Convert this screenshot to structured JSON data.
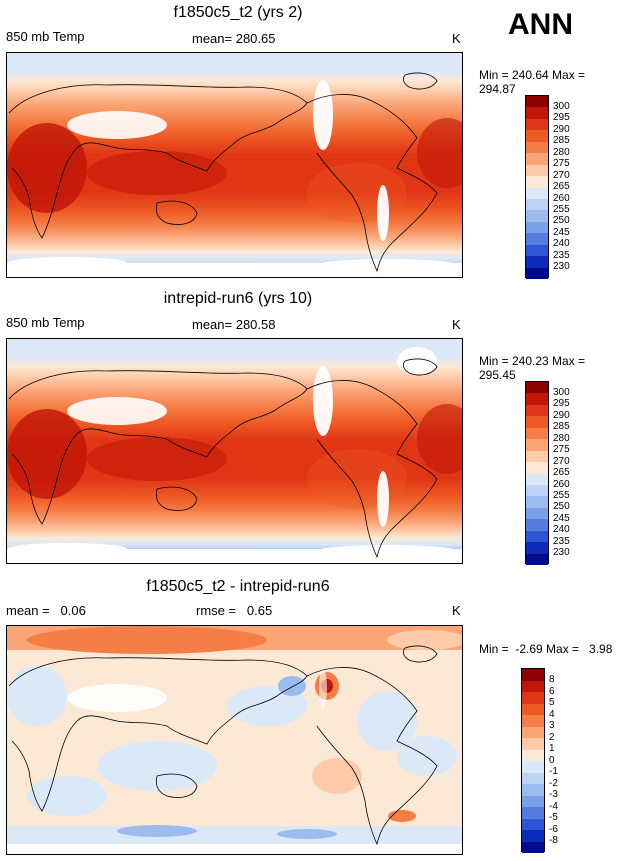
{
  "season": "ANN",
  "chart_data": [
    {
      "type": "contour-map",
      "title": "f1850c5_t2 (yrs 2)",
      "variable": "850 mb Temp",
      "stat_text": "mean= 280.65",
      "units": "K",
      "min_max_text": "Min = 240.64 Max = 294.87",
      "colorbar": {
        "levels": [
          "300",
          "295",
          "290",
          "285",
          "280",
          "275",
          "270",
          "265",
          "260",
          "255",
          "250",
          "245",
          "240",
          "235",
          "230"
        ],
        "colors": [
          "#8a0000",
          "#c01508",
          "#e03616",
          "#ee5a24",
          "#f57e46",
          "#fba477",
          "#fdcba9",
          "#fbe9d6",
          "#dbe8f8",
          "#bdd3f5",
          "#9cbcef",
          "#7aa1e8",
          "#557de0",
          "#2f55d4",
          "#0d2bb8",
          "#000a8c"
        ]
      }
    },
    {
      "type": "contour-map",
      "title": "intrepid-run6 (yrs 10)",
      "variable": "850 mb Temp",
      "stat_text": "mean= 280.58",
      "units": "K",
      "min_max_text": "Min = 240.23 Max = 295.45",
      "colorbar": {
        "levels": [
          "300",
          "295",
          "290",
          "285",
          "280",
          "275",
          "270",
          "265",
          "260",
          "255",
          "250",
          "245",
          "240",
          "235",
          "230"
        ],
        "colors": [
          "#8a0000",
          "#c01508",
          "#e03616",
          "#ee5a24",
          "#f57e46",
          "#fba477",
          "#fdcba9",
          "#fbe9d6",
          "#dbe8f8",
          "#bdd3f5",
          "#9cbcef",
          "#7aa1e8",
          "#557de0",
          "#2f55d4",
          "#0d2bb8",
          "#000a8c"
        ]
      }
    },
    {
      "type": "contour-map",
      "title": "f1850c5_t2 - intrepid-run6",
      "variable": "mean =   0.06",
      "stat_text": "rmse =   0.65",
      "units": "K",
      "min_max_text": "Min =  -2.69 Max =   3.98",
      "colorbar": {
        "levels": [
          "8",
          "6",
          "5",
          "4",
          "3",
          "2",
          "1",
          "0",
          "-1",
          "-2",
          "-3",
          "-4",
          "-5",
          "-6",
          "-8"
        ],
        "colors": [
          "#8a0000",
          "#c01508",
          "#e03616",
          "#ee5a24",
          "#f57e46",
          "#fba477",
          "#fdcba9",
          "#fbe9d6",
          "#dbe8f8",
          "#bdd3f5",
          "#9cbcef",
          "#7aa1e8",
          "#557de0",
          "#2f55d4",
          "#0d2bb8",
          "#000a8c"
        ]
      }
    }
  ]
}
